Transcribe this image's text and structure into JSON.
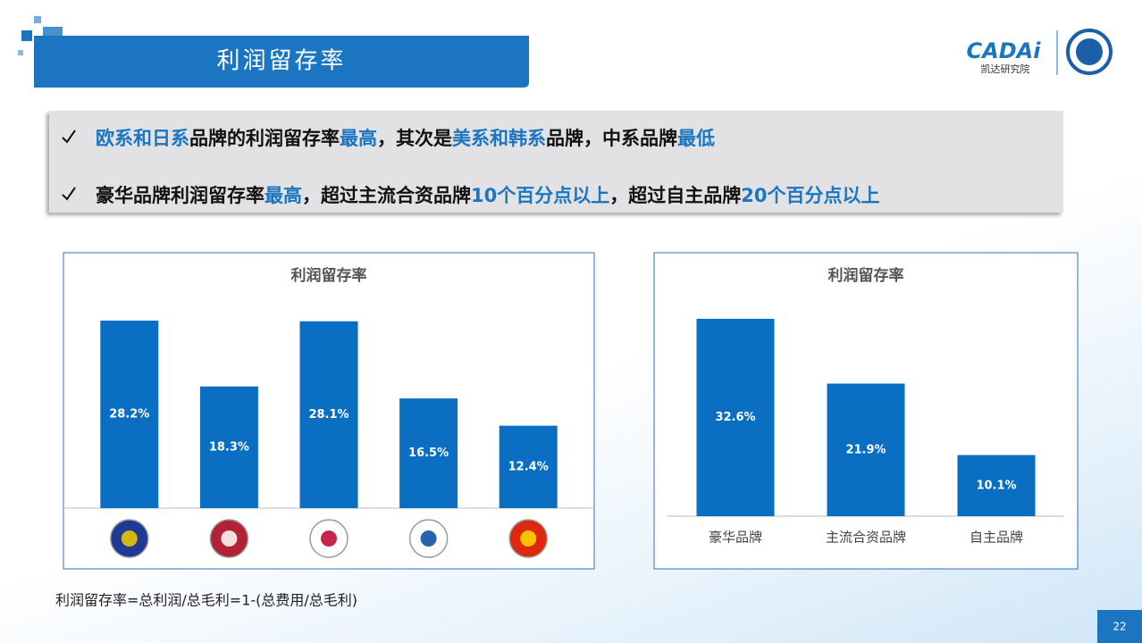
{
  "header": {
    "title": "利润留存率",
    "logo": "CADAi",
    "logo_sub": "凯达研究院"
  },
  "bullets": [
    [
      {
        "text": "欧系和日系",
        "highlight": true
      },
      {
        "text": "品牌的利润留存率",
        "highlight": false
      },
      {
        "text": "最高",
        "highlight": true
      },
      {
        "text": "，其次是",
        "highlight": false
      },
      {
        "text": "美系和韩系",
        "highlight": true
      },
      {
        "text": "品牌，中系品牌",
        "highlight": false
      },
      {
        "text": "最低",
        "highlight": true
      }
    ],
    [
      {
        "text": "豪华品牌利润留存率",
        "highlight": false
      },
      {
        "text": "最高",
        "highlight": true
      },
      {
        "text": "，超过主流合资品牌",
        "highlight": false
      },
      {
        "text": "10个百分点以上",
        "highlight": true
      },
      {
        "text": "，超过自主品牌",
        "highlight": false
      },
      {
        "text": "20个百分点以上",
        "highlight": true
      }
    ]
  ],
  "chart_data": [
    {
      "type": "bar",
      "title": "利润留存率",
      "categories": [
        null,
        null,
        null,
        null,
        null
      ],
      "values": [
        28.2,
        18.3,
        28.1,
        16.5,
        12.4
      ],
      "value_labels": [
        "28.2%",
        "18.3%",
        "28.1%",
        "16.5%",
        "12.4%"
      ],
      "color": "#0a6fc2"
    },
    {
      "type": "bar",
      "title": "利润留存率",
      "categories": [
        "豪华品牌",
        "主流合资品牌",
        "自主品牌"
      ],
      "values": [
        32.6,
        21.9,
        10.1
      ],
      "value_labels": [
        "32.6%",
        "21.9%",
        "10.1%"
      ],
      "color": "#0a6fc2"
    }
  ],
  "footnote": "利润留存率=总利润/总毛利=1-(总费用/总毛利)",
  "page_number": "22"
}
